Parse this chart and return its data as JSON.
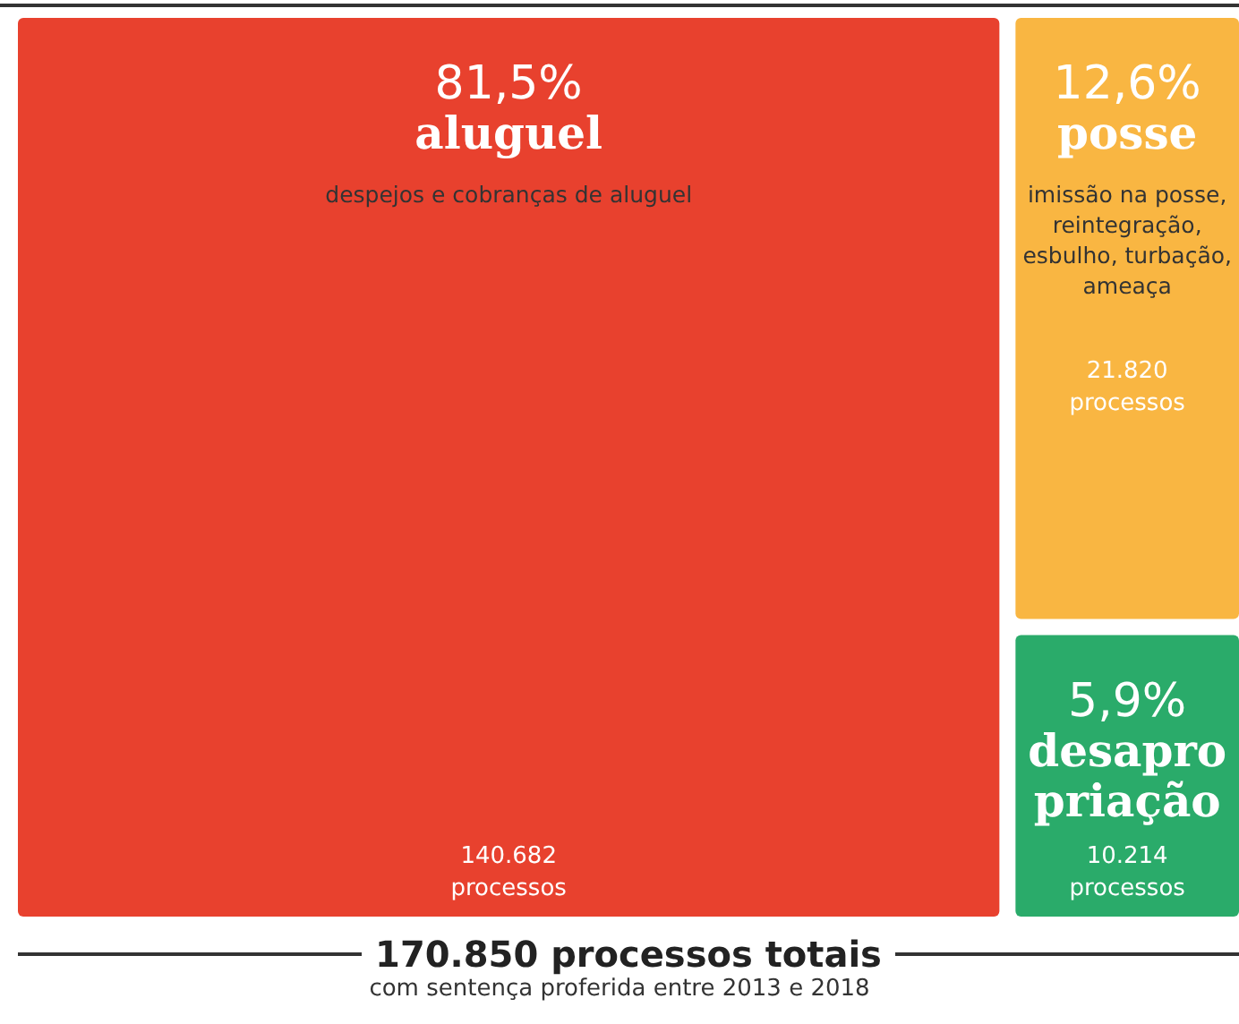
{
  "chart_data": {
    "type": "other",
    "title": "170.850 processos totais",
    "subtitle": "com sentença proferida entre 2013 e 2018",
    "categories": [
      "aluguel",
      "posse",
      "desapropriação"
    ],
    "values": [
      140682,
      21820,
      10214
    ],
    "value_labels": [
      "140.682 processos",
      "21.820 processos",
      "10.214 processos"
    ],
    "colors": [
      "#e8412e",
      "#f9b642",
      "#2aab6a"
    ],
    "annotations": [
      {
        "text": "81,5%",
        "x": "aluguel"
      },
      {
        "text": "despejos e cobranças de aluguel",
        "x": "aluguel"
      },
      {
        "text": "12,6%",
        "x": "posse"
      },
      {
        "text": "imissão na posse, reintegração, esbulho, turbação, ameaça",
        "x": "posse"
      },
      {
        "text": "5,9%",
        "x": "desapropriação"
      }
    ]
  }
}
